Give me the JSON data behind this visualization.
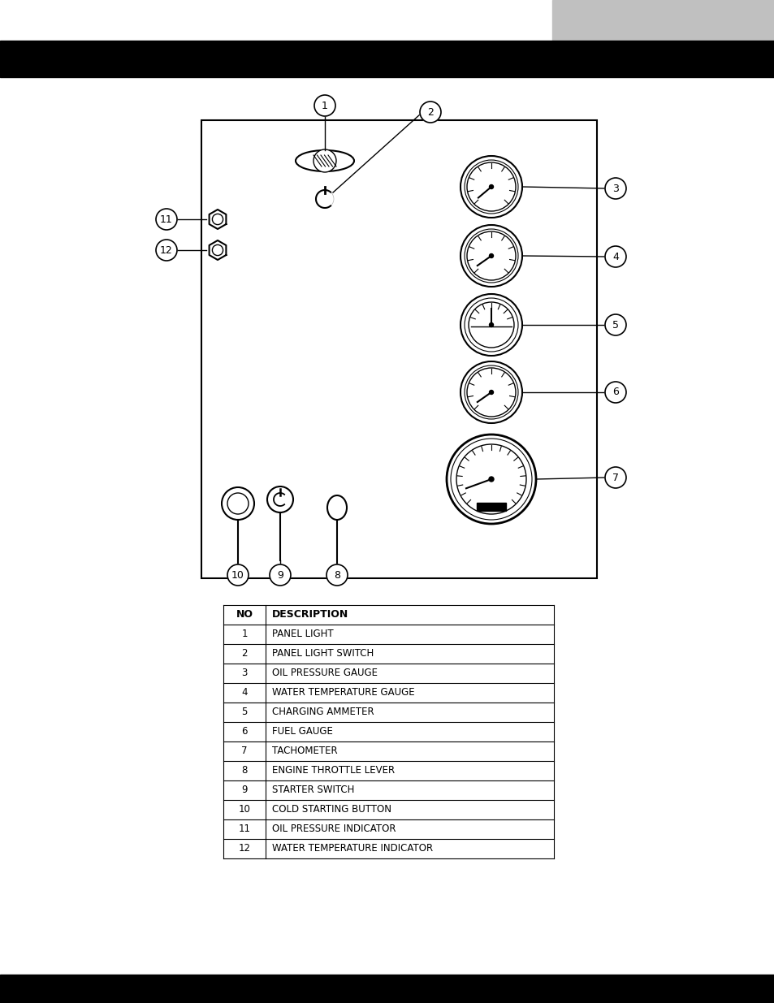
{
  "title_bar_color": "#000000",
  "footer_bar_color": "#000000",
  "gray_box_color": "#c0c0c0",
  "background_color": "#ffffff",
  "line_color": "#000000",
  "table_data": [
    [
      "NO",
      "DESCRIPTION"
    ],
    [
      "1",
      "PANEL LIGHT"
    ],
    [
      "2",
      "PANEL LIGHT SWITCH"
    ],
    [
      "3",
      "OIL PRESSURE GAUGE"
    ],
    [
      "4",
      "WATER TEMPERATURE GAUGE"
    ],
    [
      "5",
      "CHARGING AMMETER"
    ],
    [
      "6",
      "FUEL GAUGE"
    ],
    [
      "7",
      "TACHOMETER"
    ],
    [
      "8",
      "ENGINE THROTTLE LEVER"
    ],
    [
      "9",
      "STARTER SWITCH"
    ],
    [
      "10",
      "COLD STARTING BUTTON"
    ],
    [
      "11",
      "OIL PRESSURE INDICATOR"
    ],
    [
      "12",
      "WATER TEMPERATURE INDICATOR"
    ]
  ]
}
